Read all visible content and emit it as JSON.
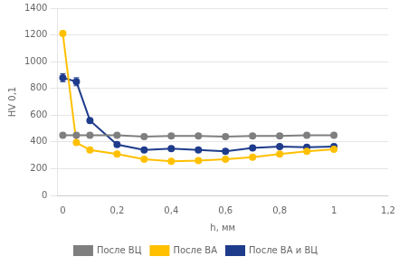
{
  "chart_data": {
    "type": "line",
    "xlabel": "h, мм",
    "ylabel": "HV 0,1",
    "x": [
      0,
      0.05,
      0.1,
      0.2,
      0.3,
      0.4,
      0.5,
      0.6,
      0.7,
      0.8,
      0.9,
      1.0
    ],
    "series": [
      {
        "name": "После ВЦ",
        "color": "#7F7F7F",
        "values": [
          450,
          450,
          450,
          450,
          440,
          445,
          445,
          440,
          445,
          445,
          450,
          450
        ],
        "yerr": [
          null,
          null,
          null,
          null,
          null,
          null,
          null,
          null,
          null,
          null,
          null,
          null
        ]
      },
      {
        "name": "После ВА",
        "color": "#FFC000",
        "values": [
          1210,
          395,
          340,
          310,
          270,
          255,
          260,
          270,
          285,
          310,
          330,
          345
        ],
        "yerr": [
          null,
          null,
          null,
          null,
          null,
          null,
          null,
          null,
          null,
          null,
          null,
          null
        ]
      },
      {
        "name": "После ВА и ВЦ",
        "color": "#1F3C8C",
        "values": [
          880,
          850,
          560,
          380,
          340,
          350,
          340,
          330,
          355,
          365,
          360,
          365
        ],
        "yerr": [
          30,
          30,
          null,
          null,
          null,
          null,
          null,
          null,
          null,
          null,
          null,
          null
        ]
      }
    ],
    "xlim": [
      -0.02,
      1.2
    ],
    "xticks": [
      0,
      {
        "value": 0.2,
        "label": "0,2"
      },
      {
        "value": 0.4,
        "label": "0,4"
      },
      {
        "value": 0.6,
        "label": "0,6"
      },
      {
        "value": 0.8,
        "label": "0,8"
      },
      1,
      {
        "value": 1.2,
        "label": "1,2"
      }
    ],
    "ylim": [
      0,
      1400
    ],
    "yticks": [
      0,
      200,
      400,
      600,
      800,
      1000,
      1200,
      1400
    ],
    "grid": "y",
    "marker": "circle",
    "legend": "bottom"
  }
}
